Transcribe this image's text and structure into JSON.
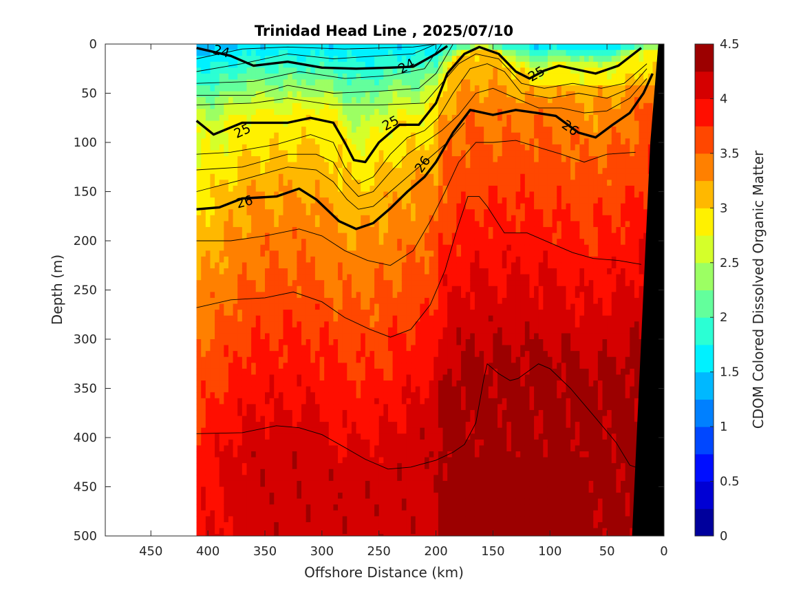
{
  "chart_data": {
    "type": "heatmap",
    "title": "Trinidad Head Line , 2025/07/10",
    "xlabel": "Offshore Distance (km)",
    "ylabel": "Depth (m)",
    "xlim": [
      490,
      0
    ],
    "ylim": [
      0,
      500
    ],
    "x_direction": "reversed",
    "y_direction": "reversed (depth increases downward)",
    "xticks": [
      "450",
      "400",
      "350",
      "300",
      "250",
      "200",
      "150",
      "100",
      "50",
      "0"
    ],
    "yticks": [
      "0",
      "50",
      "100",
      "150",
      "200",
      "250",
      "300",
      "350",
      "400",
      "450",
      "500"
    ],
    "colorbar": {
      "label": "CDOM Colored Dissolved Organic Matter",
      "range": [
        0,
        4.5
      ],
      "ticks": [
        "0",
        "0.5",
        "1",
        "1.5",
        "2",
        "2.5",
        "3",
        "3.5",
        "4",
        "4.5"
      ],
      "levels": 18,
      "colormap": "jet"
    },
    "data_extent_km": [
      410,
      0
    ],
    "bathymetry_color": "#000000",
    "contour_labels": [
      "24",
      "24",
      "25",
      "25",
      "25",
      "26",
      "26",
      "26"
    ],
    "density_contours_heavy": [
      {
        "name": "24",
        "points": [
          [
            410,
            4
          ],
          [
            380,
            12
          ],
          [
            360,
            22
          ],
          [
            330,
            18
          ],
          [
            300,
            24
          ],
          [
            270,
            25
          ],
          [
            240,
            24
          ],
          [
            220,
            23
          ],
          [
            200,
            10
          ],
          [
            190,
            2
          ]
        ]
      },
      {
        "name": "25",
        "points": [
          [
            410,
            78
          ],
          [
            395,
            92
          ],
          [
            370,
            80
          ],
          [
            330,
            80
          ],
          [
            310,
            75
          ],
          [
            290,
            80
          ],
          [
            280,
            100
          ],
          [
            272,
            118
          ],
          [
            262,
            120
          ],
          [
            250,
            100
          ],
          [
            232,
            82
          ],
          [
            215,
            82
          ],
          [
            200,
            60
          ],
          [
            190,
            30
          ],
          [
            175,
            10
          ],
          [
            162,
            3
          ],
          [
            145,
            10
          ],
          [
            130,
            28
          ],
          [
            118,
            35
          ],
          [
            105,
            27
          ],
          [
            92,
            22
          ],
          [
            60,
            30
          ],
          [
            40,
            22
          ],
          [
            20,
            4
          ]
        ]
      },
      {
        "name": "26",
        "points": [
          [
            410,
            168
          ],
          [
            390,
            166
          ],
          [
            370,
            157
          ],
          [
            340,
            155
          ],
          [
            320,
            147
          ],
          [
            305,
            158
          ],
          [
            285,
            180
          ],
          [
            270,
            188
          ],
          [
            255,
            182
          ],
          [
            240,
            167
          ],
          [
            225,
            150
          ],
          [
            210,
            135
          ],
          [
            200,
            120
          ],
          [
            185,
            90
          ],
          [
            170,
            67
          ],
          [
            150,
            72
          ],
          [
            130,
            67
          ],
          [
            112,
            70
          ],
          [
            95,
            73
          ],
          [
            75,
            90
          ],
          [
            60,
            95
          ],
          [
            45,
            82
          ],
          [
            30,
            70
          ],
          [
            18,
            50
          ],
          [
            10,
            30
          ]
        ]
      }
    ],
    "density_contours_thin": [
      {
        "points": [
          [
            410,
            15
          ],
          [
            370,
            5
          ],
          [
            330,
            3
          ],
          [
            280,
            5
          ],
          [
            220,
            3
          ],
          [
            200,
            0
          ]
        ]
      },
      {
        "points": [
          [
            410,
            28
          ],
          [
            370,
            20
          ],
          [
            330,
            10
          ],
          [
            290,
            15
          ],
          [
            250,
            12
          ],
          [
            220,
            10
          ],
          [
            200,
            0
          ]
        ]
      },
      {
        "points": [
          [
            410,
            40
          ],
          [
            360,
            38
          ],
          [
            320,
            28
          ],
          [
            280,
            35
          ],
          [
            240,
            32
          ],
          [
            210,
            25
          ],
          [
            195,
            0
          ]
        ]
      },
      {
        "points": [
          [
            410,
            52
          ],
          [
            360,
            52
          ],
          [
            330,
            42
          ],
          [
            290,
            50
          ],
          [
            250,
            48
          ],
          [
            215,
            45
          ],
          [
            200,
            30
          ],
          [
            185,
            0
          ]
        ]
      },
      {
        "points": [
          [
            410,
            62
          ],
          [
            360,
            60
          ],
          [
            330,
            55
          ],
          [
            290,
            62
          ],
          [
            250,
            62
          ],
          [
            210,
            60
          ],
          [
            195,
            40
          ],
          [
            180,
            20
          ],
          [
            165,
            10
          ],
          [
            145,
            15
          ],
          [
            125,
            40
          ],
          [
            105,
            45
          ],
          [
            80,
            40
          ],
          [
            55,
            45
          ],
          [
            35,
            40
          ],
          [
            15,
            20
          ]
        ]
      },
      {
        "points": [
          [
            410,
            112
          ],
          [
            380,
            110
          ],
          [
            340,
            102
          ],
          [
            310,
            92
          ],
          [
            290,
            100
          ],
          [
            280,
            125
          ],
          [
            268,
            142
          ],
          [
            255,
            135
          ],
          [
            240,
            112
          ],
          [
            225,
            95
          ],
          [
            210,
            88
          ],
          [
            198,
            75
          ],
          [
            185,
            50
          ],
          [
            170,
            25
          ],
          [
            155,
            20
          ],
          [
            140,
            28
          ],
          [
            125,
            50
          ],
          [
            100,
            55
          ],
          [
            75,
            50
          ],
          [
            50,
            55
          ],
          [
            30,
            45
          ],
          [
            15,
            25
          ]
        ]
      },
      {
        "points": [
          [
            410,
            128
          ],
          [
            370,
            125
          ],
          [
            330,
            112
          ],
          [
            305,
            112
          ],
          [
            290,
            120
          ],
          [
            280,
            140
          ],
          [
            268,
            155
          ],
          [
            255,
            150
          ],
          [
            240,
            130
          ],
          [
            225,
            112
          ],
          [
            210,
            100
          ],
          [
            195,
            88
          ],
          [
            180,
            72
          ],
          [
            165,
            50
          ],
          [
            150,
            45
          ],
          [
            130,
            55
          ],
          [
            110,
            65
          ],
          [
            90,
            65
          ],
          [
            70,
            70
          ],
          [
            50,
            68
          ],
          [
            30,
            55
          ],
          [
            15,
            35
          ]
        ]
      },
      {
        "points": [
          [
            410,
            150
          ],
          [
            370,
            138
          ],
          [
            330,
            125
          ],
          [
            305,
            128
          ],
          [
            290,
            140
          ],
          [
            278,
            158
          ],
          [
            268,
            168
          ],
          [
            255,
            165
          ],
          [
            240,
            150
          ],
          [
            222,
            132
          ],
          [
            205,
            115
          ],
          [
            190,
            100
          ],
          [
            175,
            80
          ]
        ]
      },
      {
        "points": [
          [
            410,
            200
          ],
          [
            380,
            200
          ],
          [
            350,
            195
          ],
          [
            320,
            188
          ],
          [
            300,
            195
          ],
          [
            280,
            210
          ],
          [
            260,
            220
          ],
          [
            240,
            225
          ],
          [
            220,
            210
          ],
          [
            205,
            180
          ],
          [
            192,
            150
          ],
          [
            180,
            120
          ],
          [
            165,
            100
          ],
          [
            150,
            100
          ],
          [
            130,
            98
          ],
          [
            110,
            105
          ],
          [
            90,
            112
          ],
          [
            70,
            120
          ],
          [
            50,
            112
          ],
          [
            25,
            110
          ]
        ]
      },
      {
        "points": [
          [
            410,
            268
          ],
          [
            380,
            260
          ],
          [
            350,
            258
          ],
          [
            325,
            252
          ],
          [
            300,
            262
          ],
          [
            280,
            278
          ],
          [
            258,
            290
          ],
          [
            240,
            298
          ],
          [
            222,
            290
          ],
          [
            205,
            265
          ],
          [
            192,
            230
          ],
          [
            182,
            190
          ],
          [
            172,
            155
          ],
          [
            162,
            155
          ],
          [
            155,
            165
          ],
          [
            140,
            192
          ],
          [
            120,
            192
          ],
          [
            100,
            202
          ],
          [
            80,
            212
          ],
          [
            62,
            218
          ],
          [
            40,
            220
          ],
          [
            20,
            224
          ]
        ]
      },
      {
        "points": [
          [
            410,
            396
          ],
          [
            370,
            395
          ],
          [
            340,
            388
          ],
          [
            320,
            390
          ],
          [
            300,
            397
          ],
          [
            280,
            410
          ],
          [
            262,
            422
          ],
          [
            242,
            432
          ],
          [
            222,
            430
          ],
          [
            200,
            423
          ],
          [
            185,
            415
          ],
          [
            175,
            407
          ],
          [
            165,
            385
          ],
          [
            158,
            340
          ],
          [
            155,
            325
          ],
          [
            145,
            335
          ],
          [
            135,
            342
          ],
          [
            128,
            340
          ],
          [
            110,
            325
          ],
          [
            100,
            330
          ],
          [
            82,
            350
          ],
          [
            60,
            380
          ],
          [
            42,
            405
          ],
          [
            30,
            428
          ],
          [
            18,
            433
          ]
        ]
      }
    ]
  }
}
